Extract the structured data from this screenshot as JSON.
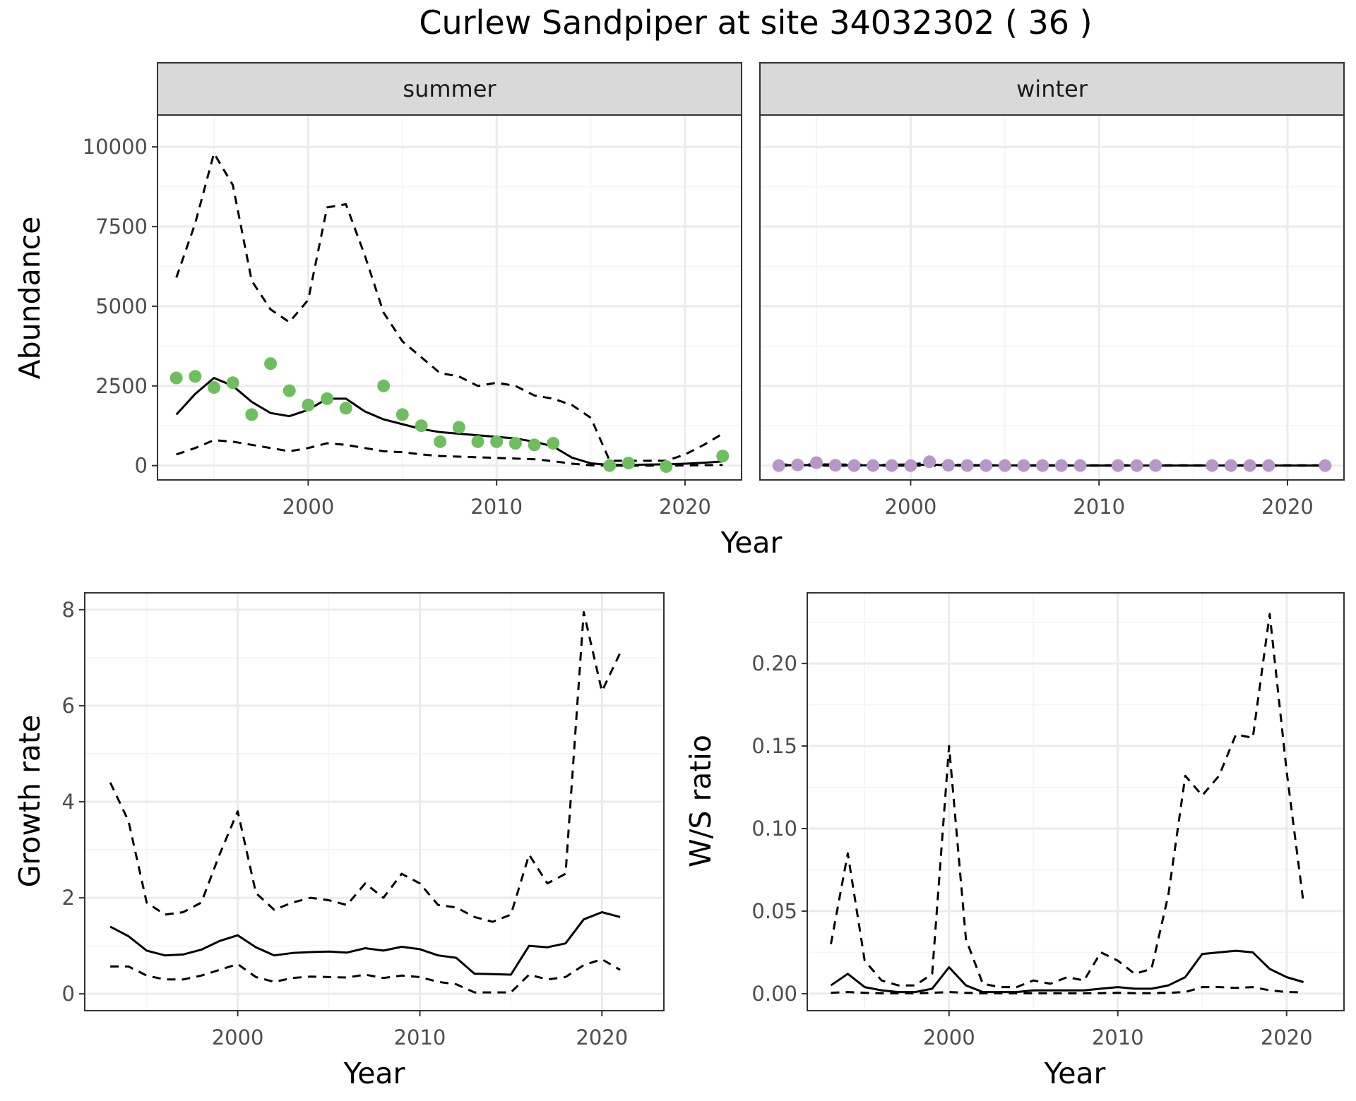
{
  "title": "Curlew Sandpiper at site 34032302 ( 36 )",
  "colors": {
    "summer_points": "#6dbf5d",
    "winter_points": "#b896cc",
    "line": "#000000",
    "grid_major": "#ebebeb",
    "grid_minor": "#f4f4f4",
    "strip_fill": "#d9d9d9",
    "strip_border": "#333333",
    "panel_border": "#333333",
    "tick_text": "#4d4d4d"
  },
  "line_styles": {
    "estimate": "solid",
    "bounds": "dashed"
  },
  "chart_data": [
    {
      "type": "line",
      "panel": "summer",
      "strip_label": "summer",
      "xlabel": "Year",
      "ylabel": "Abundance",
      "xlim": [
        1992,
        2023
      ],
      "ylim": [
        -450,
        11000
      ],
      "x_ticks": [
        2000,
        2010,
        2020
      ],
      "y_ticks": [
        0,
        2500,
        5000,
        7500,
        10000
      ],
      "grid": true,
      "series": [
        {
          "role": "points",
          "style": "point",
          "x": [
            1993,
            1994,
            1995,
            1996,
            1997,
            1998,
            1999,
            2000,
            2001,
            2002,
            2004,
            2005,
            2006,
            2007,
            2008,
            2009,
            2010,
            2011,
            2012,
            2013,
            2016,
            2017,
            2019,
            2022
          ],
          "y": [
            2750,
            2800,
            2450,
            2600,
            1600,
            3200,
            2350,
            1900,
            2100,
            1800,
            2500,
            1600,
            1250,
            750,
            1200,
            750,
            750,
            700,
            650,
            700,
            0,
            80,
            -30,
            300
          ]
        },
        {
          "role": "estimate",
          "style": "solid",
          "x": [
            1993,
            1994,
            1995,
            1996,
            1997,
            1998,
            1999,
            2000,
            2001,
            2002,
            2003,
            2004,
            2005,
            2006,
            2007,
            2008,
            2009,
            2010,
            2011,
            2012,
            2013,
            2014,
            2015,
            2016,
            2017,
            2018,
            2019,
            2020,
            2021,
            2022
          ],
          "y": [
            1600,
            2250,
            2750,
            2500,
            2000,
            1650,
            1550,
            1750,
            2100,
            2100,
            1700,
            1450,
            1300,
            1150,
            1050,
            1000,
            950,
            900,
            850,
            750,
            600,
            250,
            70,
            20,
            20,
            30,
            40,
            60,
            90,
            130
          ]
        },
        {
          "role": "upper",
          "style": "dashed",
          "x": [
            1993,
            1994,
            1995,
            1996,
            1997,
            1998,
            1999,
            2000,
            2001,
            2002,
            2003,
            2004,
            2005,
            2006,
            2007,
            2008,
            2009,
            2010,
            2011,
            2012,
            2013,
            2014,
            2015,
            2016,
            2017,
            2018,
            2019,
            2020,
            2021,
            2022
          ],
          "y": [
            5900,
            7600,
            9800,
            8800,
            5800,
            4900,
            4500,
            5200,
            8100,
            8200,
            6600,
            4800,
            3900,
            3400,
            2900,
            2800,
            2500,
            2600,
            2500,
            2200,
            2100,
            1900,
            1500,
            150,
            150,
            150,
            150,
            350,
            650,
            1000
          ]
        },
        {
          "role": "lower",
          "style": "dashed",
          "x": [
            1993,
            1994,
            1995,
            1996,
            1997,
            1998,
            1999,
            2000,
            2001,
            2002,
            2003,
            2004,
            2005,
            2006,
            2007,
            2008,
            2009,
            2010,
            2011,
            2012,
            2013,
            2014,
            2015,
            2016,
            2017,
            2018,
            2019,
            2020,
            2021,
            2022
          ],
          "y": [
            350,
            550,
            800,
            750,
            650,
            550,
            450,
            550,
            700,
            650,
            550,
            450,
            420,
            350,
            300,
            280,
            260,
            240,
            220,
            200,
            140,
            60,
            10,
            0,
            0,
            0,
            0,
            5,
            10,
            20
          ]
        }
      ]
    },
    {
      "type": "line",
      "panel": "winter",
      "strip_label": "winter",
      "xlabel": "Year",
      "ylabel": "Abundance",
      "xlim": [
        1992,
        2023
      ],
      "ylim": [
        -450,
        11000
      ],
      "x_ticks": [
        2000,
        2010,
        2020
      ],
      "y_ticks": [
        0,
        2500,
        5000,
        7500,
        10000
      ],
      "grid": true,
      "series": [
        {
          "role": "points",
          "style": "point",
          "x": [
            1993,
            1994,
            1995,
            1996,
            1997,
            1998,
            1999,
            2000,
            2001,
            2002,
            2003,
            2004,
            2005,
            2006,
            2007,
            2008,
            2009,
            2011,
            2012,
            2013,
            2016,
            2017,
            2018,
            2019,
            2022
          ],
          "y": [
            0,
            20,
            90,
            10,
            0,
            0,
            0,
            0,
            120,
            10,
            0,
            0,
            0,
            0,
            0,
            0,
            0,
            0,
            0,
            0,
            0,
            0,
            0,
            0,
            0
          ]
        },
        {
          "role": "estimate",
          "style": "solid",
          "x": [
            1993,
            1995,
            1997,
            1999,
            2000,
            2001,
            2002,
            2003,
            2005,
            2008,
            2010,
            2013,
            2016,
            2019,
            2022
          ],
          "y": [
            10,
            15,
            10,
            10,
            15,
            30,
            10,
            5,
            3,
            2,
            2,
            2,
            2,
            2,
            2
          ]
        },
        {
          "role": "upper",
          "style": "dashed",
          "x": [
            1993,
            1995,
            1997,
            1999,
            2000,
            2001,
            2002,
            2003,
            2005,
            2008,
            2010,
            2013,
            2016,
            2019,
            2022
          ],
          "y": [
            30,
            40,
            30,
            25,
            40,
            90,
            30,
            15,
            10,
            8,
            8,
            8,
            8,
            8,
            8
          ]
        },
        {
          "role": "lower",
          "style": "dashed",
          "x": [
            1993,
            1995,
            1997,
            1999,
            2000,
            2001,
            2002,
            2003,
            2005,
            2008,
            2010,
            2013,
            2016,
            2019,
            2022
          ],
          "y": [
            0,
            0,
            0,
            0,
            0,
            0,
            0,
            0,
            0,
            0,
            0,
            0,
            0,
            0,
            0
          ]
        }
      ]
    },
    {
      "type": "line",
      "panel": "growth",
      "xlabel": "Year",
      "ylabel": "Growth rate",
      "xlim": [
        1991.6,
        2023.4
      ],
      "ylim": [
        -0.35,
        8.35
      ],
      "x_ticks": [
        2000,
        2010,
        2020
      ],
      "y_ticks": [
        0,
        2,
        4,
        6,
        8
      ],
      "grid": true,
      "series": [
        {
          "role": "estimate",
          "style": "solid",
          "x": [
            1993,
            1994,
            1995,
            1996,
            1997,
            1998,
            1999,
            2000,
            2001,
            2002,
            2003,
            2004,
            2005,
            2006,
            2007,
            2008,
            2009,
            2010,
            2011,
            2012,
            2013,
            2014,
            2015,
            2016,
            2017,
            2018,
            2019,
            2020,
            2021
          ],
          "y": [
            1.4,
            1.2,
            0.9,
            0.8,
            0.82,
            0.92,
            1.1,
            1.22,
            0.97,
            0.8,
            0.85,
            0.87,
            0.88,
            0.86,
            0.95,
            0.9,
            0.98,
            0.93,
            0.8,
            0.75,
            0.42,
            0.41,
            0.4,
            1.0,
            0.97,
            1.05,
            1.55,
            1.7,
            1.6
          ]
        },
        {
          "role": "upper",
          "style": "dashed",
          "x": [
            1993,
            1994,
            1995,
            1996,
            1997,
            1998,
            1999,
            2000,
            2001,
            2002,
            2003,
            2004,
            2005,
            2006,
            2007,
            2008,
            2009,
            2010,
            2011,
            2012,
            2013,
            2014,
            2015,
            2016,
            2017,
            2018,
            2019,
            2020,
            2021
          ],
          "y": [
            4.4,
            3.6,
            1.9,
            1.65,
            1.7,
            1.9,
            2.9,
            3.8,
            2.1,
            1.75,
            1.9,
            2.0,
            1.95,
            1.85,
            2.3,
            2.0,
            2.5,
            2.3,
            1.85,
            1.8,
            1.6,
            1.5,
            1.65,
            2.9,
            2.3,
            2.5,
            7.95,
            6.3,
            7.1
          ]
        },
        {
          "role": "lower",
          "style": "dashed",
          "x": [
            1993,
            1994,
            1995,
            1996,
            1997,
            1998,
            1999,
            2000,
            2001,
            2002,
            2003,
            2004,
            2005,
            2006,
            2007,
            2008,
            2009,
            2010,
            2011,
            2012,
            2013,
            2014,
            2015,
            2016,
            2017,
            2018,
            2019,
            2020,
            2021
          ],
          "y": [
            0.57,
            0.57,
            0.38,
            0.3,
            0.3,
            0.38,
            0.5,
            0.62,
            0.35,
            0.25,
            0.33,
            0.36,
            0.35,
            0.34,
            0.4,
            0.33,
            0.38,
            0.35,
            0.25,
            0.2,
            0.03,
            0.03,
            0.03,
            0.4,
            0.3,
            0.35,
            0.6,
            0.72,
            0.5
          ]
        }
      ]
    },
    {
      "type": "line",
      "panel": "ratio",
      "xlabel": "Year",
      "ylabel": "W/S ratio",
      "xlim": [
        1991.6,
        2023.4
      ],
      "ylim": [
        -0.0103,
        0.2428
      ],
      "x_ticks": [
        2000,
        2010,
        2020
      ],
      "y_ticks": [
        0.0,
        0.05,
        0.1,
        0.15,
        0.2
      ],
      "y_tick_labels": [
        "0.00",
        "0.05",
        "0.10",
        "0.15",
        "0.20"
      ],
      "grid": true,
      "series": [
        {
          "role": "estimate",
          "style": "solid",
          "x": [
            1993,
            1994,
            1995,
            1996,
            1997,
            1998,
            1999,
            2000,
            2001,
            2002,
            2003,
            2004,
            2005,
            2006,
            2007,
            2008,
            2009,
            2010,
            2011,
            2012,
            2013,
            2014,
            2015,
            2016,
            2017,
            2018,
            2019,
            2020,
            2021
          ],
          "y": [
            0.005,
            0.012,
            0.004,
            0.002,
            0.001,
            0.001,
            0.003,
            0.016,
            0.005,
            0.001,
            0.001,
            0.001,
            0.002,
            0.002,
            0.002,
            0.002,
            0.003,
            0.004,
            0.003,
            0.003,
            0.005,
            0.01,
            0.024,
            0.025,
            0.026,
            0.025,
            0.015,
            0.01,
            0.007
          ]
        },
        {
          "role": "upper",
          "style": "dashed",
          "x": [
            1993,
            1994,
            1995,
            1996,
            1997,
            1998,
            1999,
            2000,
            2001,
            2002,
            2003,
            2004,
            2005,
            2006,
            2007,
            2008,
            2009,
            2010,
            2011,
            2012,
            2013,
            2014,
            2015,
            2016,
            2017,
            2018,
            2019,
            2020,
            2021
          ],
          "y": [
            0.03,
            0.085,
            0.02,
            0.008,
            0.005,
            0.005,
            0.012,
            0.15,
            0.033,
            0.006,
            0.004,
            0.004,
            0.008,
            0.006,
            0.01,
            0.008,
            0.025,
            0.02,
            0.012,
            0.015,
            0.06,
            0.132,
            0.12,
            0.132,
            0.157,
            0.155,
            0.23,
            0.135,
            0.055
          ]
        },
        {
          "role": "lower",
          "style": "dashed",
          "x": [
            1993,
            1994,
            1995,
            1996,
            1997,
            1998,
            1999,
            2000,
            2001,
            2002,
            2003,
            2004,
            2005,
            2006,
            2007,
            2008,
            2009,
            2010,
            2011,
            2012,
            2013,
            2014,
            2015,
            2016,
            2017,
            2018,
            2019,
            2020,
            2021
          ],
          "y": [
            0.0005,
            0.001,
            0.0005,
            0.0002,
            0.0002,
            0.0002,
            0.0005,
            0.001,
            0.0005,
            0.0002,
            0.0002,
            0.0002,
            0.0002,
            0.0002,
            0.0002,
            0.0002,
            0.0003,
            0.0005,
            0.0003,
            0.0003,
            0.0005,
            0.001,
            0.004,
            0.004,
            0.0035,
            0.004,
            0.002,
            0.001,
            0.0008
          ]
        }
      ]
    }
  ]
}
